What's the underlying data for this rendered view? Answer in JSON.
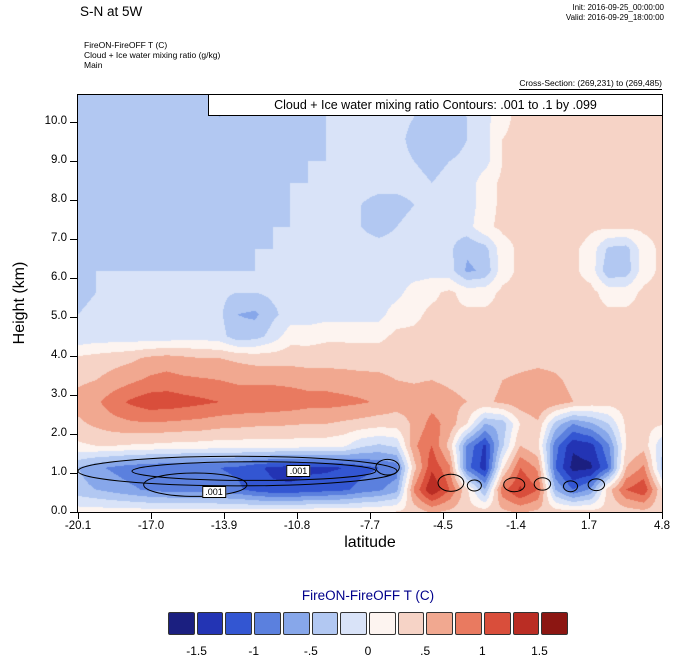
{
  "header": {
    "title": "S-N at 5W",
    "init_line": "Init: 2016-09-25_00:00:00",
    "valid_line": "Valid: 2016-09-29_18:00:00"
  },
  "meta": {
    "line1": "FireON-FireOFF T  (C)",
    "line2": "Cloud + Ice water mixing ratio   (g/kg)",
    "line3": "Main",
    "cross_section": "Cross-Section: (269,231) to (269,485)"
  },
  "plot": {
    "annotation": "Cloud + Ice water mixing ratio Contours: .001 to .1 by .099"
  },
  "axes": {
    "x_label": "latitude",
    "y_label": "Height (km)"
  },
  "colorbar": {
    "title": "FireON-FireOFF T  (C)",
    "title_color": "#00008b",
    "tick_labels": [
      "-1.5",
      "-1",
      "-.5",
      "0",
      ".5",
      "1",
      "1.5"
    ],
    "tick_positions": [
      1,
      3,
      5,
      7,
      9,
      11,
      13
    ]
  },
  "chart_data": {
    "type": "heatmap",
    "title": "FireON-FireOFF T (C) with Cloud + Ice water mixing ratio contours",
    "xlabel": "latitude",
    "ylabel": "Height (km)",
    "x_range": [
      -20.1,
      4.8
    ],
    "y_range": [
      0,
      10.7
    ],
    "x_ticks": [
      "-20.1",
      "-17.0",
      "-13.9",
      "-10.8",
      "-7.7",
      "-4.5",
      "-1.4",
      "1.7",
      "4.8"
    ],
    "y_ticks": [
      "0.0",
      "1.0",
      "2.0",
      "3.0",
      "4.0",
      "5.0",
      "6.0",
      "7.0",
      "8.0",
      "9.0",
      "10.0"
    ],
    "levels": [
      -1.75,
      -1.5,
      -1.25,
      -1.0,
      -0.75,
      -0.5,
      -0.25,
      0,
      0.25,
      0.5,
      0.75,
      1.0,
      1.25,
      1.5,
      1.75
    ],
    "colors": [
      "#1b1f80",
      "#2334b4",
      "#3356d2",
      "#5b80de",
      "#87a7ea",
      "#b2c8f2",
      "#d9e3f8",
      "#fdf4f0",
      "#f6d3c6",
      "#f1a890",
      "#e97a60",
      "#d94e3b",
      "#ba2d24",
      "#8c1612"
    ],
    "grid": [
      [
        -0.4,
        -0.35,
        -0.3,
        -0.3,
        -0.3,
        -0.3,
        -0.3,
        -0.45,
        -0.55,
        -0.45,
        -0.3,
        -0.3,
        -0.3,
        -0.3,
        -0.25,
        -0.25,
        -0.25,
        -0.2,
        -0.2,
        -0.25,
        -0.3,
        -0.25,
        -0.2,
        -0.1,
        0.25,
        0.3,
        0.3,
        0.3,
        0.3,
        0.25,
        0.3,
        0.3,
        0.3,
        0.3
      ],
      [
        -0.4,
        -0.3,
        -0.3,
        -0.3,
        -0.3,
        -0.3,
        -0.3,
        -0.4,
        -0.5,
        -0.4,
        -0.3,
        -0.3,
        -0.3,
        -0.3,
        -0.25,
        -0.25,
        -0.2,
        -0.2,
        -0.2,
        -0.25,
        -0.35,
        -0.3,
        -0.25,
        -0.1,
        0.2,
        0.3,
        0.3,
        0.3,
        0.3,
        0.3,
        0.3,
        0.3,
        0.3,
        0.3
      ],
      [
        -0.4,
        -0.3,
        -0.3,
        -0.3,
        -0.3,
        -0.3,
        -0.3,
        -0.3,
        -0.35,
        -0.3,
        -0.3,
        -0.3,
        -0.3,
        -0.3,
        -0.25,
        -0.2,
        -0.2,
        -0.2,
        -0.2,
        -0.3,
        -0.4,
        -0.35,
        -0.25,
        -0.1,
        0.25,
        0.3,
        0.3,
        0.3,
        0.32,
        0.3,
        0.3,
        0.3,
        0.3,
        0.3
      ],
      [
        -0.4,
        -0.3,
        -0.3,
        -0.3,
        -0.35,
        -0.4,
        -0.35,
        -0.3,
        -0.3,
        -0.3,
        -0.3,
        -0.3,
        -0.3,
        -0.25,
        -0.25,
        -0.2,
        -0.2,
        -0.2,
        -0.2,
        -0.25,
        -0.3,
        -0.25,
        -0.2,
        -0.1,
        0.25,
        0.3,
        0.32,
        0.32,
        0.3,
        0.3,
        0.3,
        0.3,
        0.3,
        0.3
      ],
      [
        -0.35,
        -0.3,
        -0.3,
        -0.3,
        -0.4,
        -0.45,
        -0.4,
        -0.3,
        -0.3,
        -0.3,
        -0.3,
        -0.3,
        -0.25,
        -0.25,
        -0.2,
        -0.2,
        -0.2,
        -0.2,
        -0.2,
        -0.2,
        -0.25,
        -0.2,
        -0.15,
        0.15,
        0.3,
        0.3,
        0.32,
        0.35,
        0.32,
        0.3,
        0.3,
        0.3,
        0.3,
        0.3
      ],
      [
        -0.35,
        -0.3,
        -0.3,
        -0.3,
        -0.35,
        -0.4,
        -0.35,
        -0.3,
        -0.3,
        -0.3,
        -0.3,
        -0.3,
        -0.25,
        -0.2,
        -0.2,
        -0.2,
        -0.25,
        -0.3,
        -0.3,
        -0.25,
        -0.2,
        -0.2,
        -0.15,
        0.15,
        0.3,
        0.3,
        0.3,
        0.32,
        0.32,
        0.3,
        0.3,
        0.3,
        0.3,
        0.3
      ],
      [
        -0.3,
        -0.3,
        -0.3,
        -0.3,
        -0.3,
        -0.3,
        -0.3,
        -0.3,
        -0.3,
        -0.3,
        -0.3,
        -0.25,
        -0.25,
        -0.2,
        -0.2,
        -0.2,
        -0.25,
        -0.3,
        -0.25,
        -0.2,
        -0.2,
        -0.15,
        -0.1,
        0.2,
        0.3,
        0.32,
        0.45,
        0.48,
        0.38,
        0.3,
        0.3,
        0.3,
        0.3,
        0.3
      ],
      [
        -0.3,
        -0.3,
        -0.3,
        -0.3,
        -0.3,
        -0.3,
        -0.3,
        -0.3,
        -0.3,
        -0.3,
        -0.25,
        -0.25,
        -0.2,
        -0.2,
        -0.2,
        -0.2,
        -0.2,
        -0.2,
        -0.2,
        -0.2,
        -0.15,
        -0.2,
        -0.45,
        -0.35,
        0.15,
        0.3,
        0.38,
        0.38,
        0.3,
        0.15,
        -0.3,
        -0.35,
        0.15,
        0.3
      ],
      [
        -0.3,
        -0.25,
        -0.25,
        -0.25,
        -0.25,
        -0.25,
        -0.25,
        -0.25,
        -0.25,
        -0.25,
        -0.25,
        -0.2,
        -0.2,
        -0.2,
        -0.2,
        -0.2,
        -0.2,
        -0.2,
        -0.2,
        -0.15,
        -0.1,
        -0.15,
        -0.55,
        -0.45,
        0.15,
        0.3,
        0.32,
        0.32,
        0.3,
        0.15,
        -0.45,
        -0.4,
        0.15,
        0.3
      ],
      [
        -0.3,
        -0.25,
        -0.2,
        -0.2,
        -0.2,
        -0.2,
        -0.2,
        -0.2,
        -0.2,
        -0.25,
        -0.25,
        -0.2,
        -0.2,
        -0.15,
        -0.15,
        -0.15,
        -0.15,
        -0.15,
        -0.1,
        0.15,
        0.2,
        0.3,
        0.15,
        0.15,
        0.3,
        0.32,
        0.32,
        0.32,
        0.32,
        0.32,
        0.15,
        0.15,
        0.3,
        0.32
      ],
      [
        -0.25,
        -0.2,
        -0.2,
        -0.2,
        -0.2,
        -0.2,
        -0.2,
        -0.15,
        -0.2,
        -0.5,
        -0.55,
        -0.3,
        -0.15,
        -0.15,
        -0.1,
        -0.1,
        -0.1,
        -0.1,
        0.15,
        0.2,
        0.3,
        0.3,
        0.3,
        0.3,
        0.32,
        0.32,
        0.35,
        0.35,
        0.32,
        0.32,
        0.3,
        0.3,
        0.32,
        0.32
      ],
      [
        -0.2,
        -0.15,
        -0.15,
        -0.15,
        -0.15,
        -0.15,
        -0.1,
        -0.1,
        -0.15,
        -0.4,
        -0.35,
        -0.15,
        0.15,
        0.15,
        0.2,
        0.2,
        0.2,
        0.2,
        0.3,
        0.3,
        0.32,
        0.32,
        0.32,
        0.32,
        0.35,
        0.35,
        0.35,
        0.35,
        0.35,
        0.32,
        0.32,
        0.32,
        0.32,
        0.32
      ],
      [
        0.3,
        0.35,
        0.4,
        0.45,
        0.55,
        0.6,
        0.55,
        0.5,
        0.5,
        0.45,
        0.4,
        0.4,
        0.4,
        0.38,
        0.38,
        0.38,
        0.36,
        0.36,
        0.34,
        0.34,
        0.35,
        0.34,
        0.32,
        0.32,
        0.38,
        0.4,
        0.42,
        0.4,
        0.34,
        0.32,
        0.32,
        0.32,
        0.32,
        0.32
      ],
      [
        0.45,
        0.5,
        0.6,
        0.7,
        0.8,
        0.85,
        0.8,
        0.78,
        0.75,
        0.7,
        0.7,
        0.7,
        0.68,
        0.65,
        0.65,
        0.62,
        0.6,
        0.58,
        0.5,
        0.48,
        0.5,
        0.45,
        0.4,
        0.4,
        0.5,
        0.55,
        0.6,
        0.55,
        0.42,
        0.35,
        0.35,
        0.35,
        0.35,
        0.33
      ],
      [
        0.6,
        0.7,
        0.9,
        1.05,
        1.15,
        1.15,
        1.1,
        1.05,
        1.0,
        0.95,
        0.95,
        0.92,
        0.9,
        0.85,
        0.85,
        0.82,
        0.78,
        0.72,
        0.62,
        0.6,
        0.65,
        0.58,
        0.5,
        0.45,
        0.55,
        0.65,
        0.75,
        0.65,
        0.5,
        0.4,
        0.35,
        0.38,
        0.38,
        0.34
      ],
      [
        0.45,
        0.55,
        0.65,
        0.7,
        0.72,
        0.7,
        0.68,
        0.65,
        0.6,
        0.58,
        0.55,
        0.55,
        0.52,
        0.5,
        0.5,
        0.45,
        0.4,
        0.35,
        0.35,
        0.55,
        0.85,
        0.65,
        0.25,
        -0.5,
        -0.4,
        0.25,
        0.45,
        -0.35,
        -0.75,
        -0.55,
        -0.25,
        0.3,
        0.32,
        0.28
      ],
      [
        0.2,
        0.25,
        0.25,
        0.22,
        0.2,
        0.18,
        0.15,
        0.15,
        0.12,
        0.12,
        0.12,
        0.12,
        0.12,
        0.1,
        0.1,
        0.05,
        -0.2,
        -0.3,
        -0.2,
        0.7,
        1.0,
        0.4,
        -0.8,
        -1.3,
        -0.3,
        0.5,
        0.3,
        -0.9,
        -1.45,
        -1.35,
        -0.8,
        0.25,
        0.4,
        -0.2
      ],
      [
        -0.5,
        -0.7,
        -0.8,
        -0.9,
        -0.95,
        -1.0,
        -1.0,
        -1.0,
        -1.0,
        -1.05,
        -1.2,
        -1.3,
        -1.35,
        -1.3,
        -1.3,
        -1.25,
        -1.1,
        -1.0,
        -0.9,
        0.4,
        1.2,
        0.8,
        -0.9,
        -1.4,
        0.2,
        1.0,
        0.7,
        -1.0,
        -1.6,
        -1.55,
        -1.0,
        0.5,
        0.8,
        -0.3
      ],
      [
        -0.4,
        -0.5,
        -0.6,
        -0.7,
        -0.8,
        -0.85,
        -0.85,
        -0.85,
        -0.9,
        -0.95,
        -1.1,
        -1.2,
        -1.2,
        -1.15,
        -1.1,
        -1.05,
        -0.9,
        -0.8,
        -0.6,
        0.8,
        1.5,
        1.0,
        0.3,
        -0.5,
        0.9,
        1.3,
        1.0,
        -0.5,
        -1.0,
        -0.7,
        0.4,
        1.0,
        1.2,
        0.3
      ],
      [
        0.12,
        0.12,
        0.12,
        0.12,
        0.12,
        0.12,
        0.12,
        0.12,
        0.12,
        0.12,
        0.12,
        0.15,
        0.15,
        0.18,
        0.18,
        0.18,
        0.2,
        0.22,
        0.25,
        0.35,
        0.55,
        0.45,
        0.35,
        0.35,
        0.45,
        0.55,
        0.45,
        0.35,
        0.32,
        0.32,
        0.32,
        0.38,
        0.45,
        0.32
      ]
    ],
    "contour_levels": [
      0.001,
      0.1
    ],
    "contours": [
      {
        "cx": -13.3,
        "cy": 1.05,
        "rx": 6.8,
        "ry": 0.38
      },
      {
        "cx": -12.6,
        "cy": 1.05,
        "rx": 5.2,
        "ry": 0.24
      },
      {
        "cx": -15.1,
        "cy": 0.7,
        "rx": 2.2,
        "ry": 0.3
      },
      {
        "cx": -6.9,
        "cy": 1.15,
        "rx": 0.5,
        "ry": 0.2
      },
      {
        "cx": -4.2,
        "cy": 0.75,
        "rx": 0.55,
        "ry": 0.22
      },
      {
        "cx": -3.2,
        "cy": 0.68,
        "rx": 0.3,
        "ry": 0.14
      },
      {
        "cx": -1.5,
        "cy": 0.7,
        "rx": 0.45,
        "ry": 0.18
      },
      {
        "cx": -0.3,
        "cy": 0.72,
        "rx": 0.35,
        "ry": 0.16
      },
      {
        "cx": 0.9,
        "cy": 0.66,
        "rx": 0.3,
        "ry": 0.14
      },
      {
        "cx": 2.0,
        "cy": 0.7,
        "rx": 0.35,
        "ry": 0.15
      }
    ],
    "contour_labels": [
      {
        "text": ".001",
        "x": -14.3,
        "y": 0.52
      },
      {
        "text": ".001",
        "x": -10.7,
        "y": 1.05
      }
    ]
  }
}
